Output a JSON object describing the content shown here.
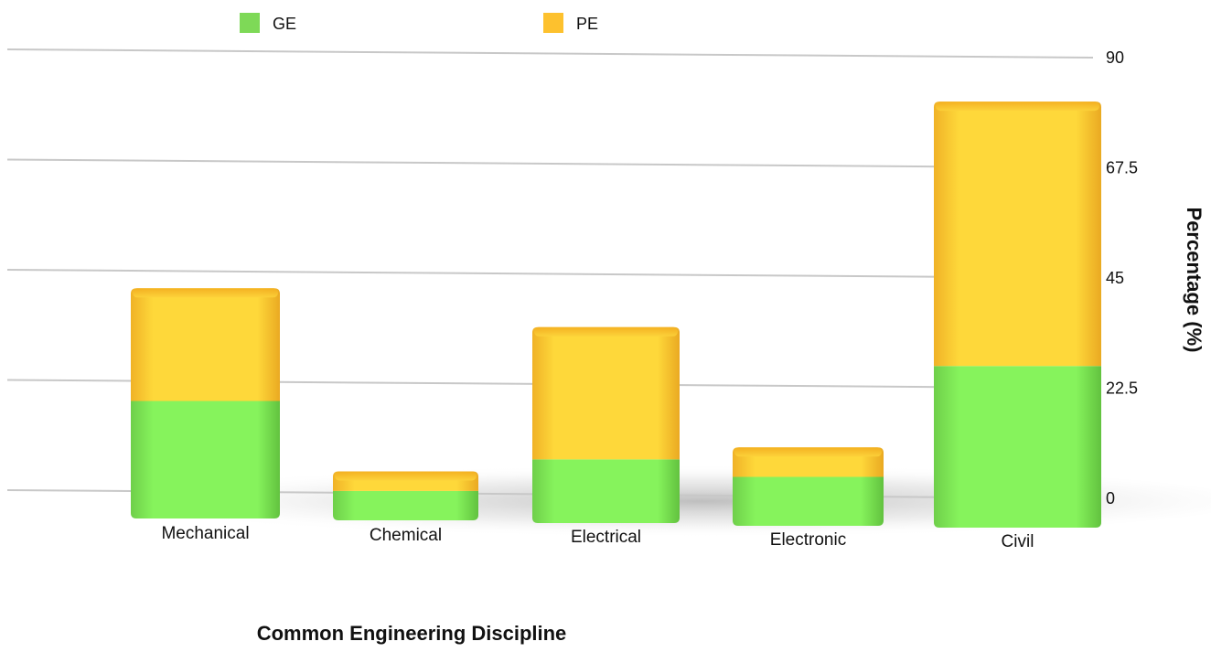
{
  "chart_data": {
    "type": "bar",
    "stacked": true,
    "style": "3d",
    "categories": [
      "Mechanical",
      "Chemical",
      "Electrical",
      "Electronic",
      "Civil"
    ],
    "series": [
      {
        "name": "GE",
        "color": "#7ED957",
        "values": [
          24,
          6,
          13,
          10,
          33
        ]
      },
      {
        "name": "PE",
        "color": "#FDC12E",
        "values": [
          23,
          4,
          27,
          6,
          54
        ]
      }
    ],
    "xlabel": "Common Engineering Discipline",
    "ylabel": "Percentage (%)",
    "ylim": [
      0,
      90
    ],
    "yticks": [
      "0",
      "22.5",
      "45",
      "67.5",
      "90"
    ],
    "y_axis_side": "right",
    "grid": true,
    "legend_position": "top-left"
  }
}
